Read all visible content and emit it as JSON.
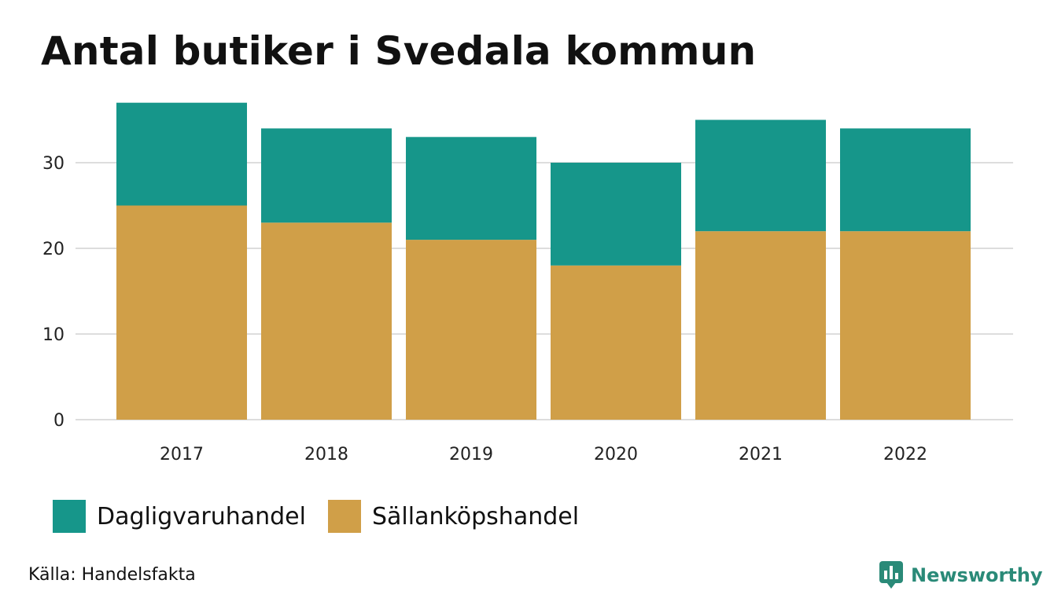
{
  "header": {
    "title": "Antal butiker i Svedala kommun"
  },
  "colors": {
    "dagligvaruhandel": "#16968a",
    "sallankopshandel": "#d09f48",
    "gridline": "#dddddd",
    "brand": "#2a8a78"
  },
  "chart_data": {
    "type": "bar",
    "stacked": true,
    "categories": [
      "2017",
      "2018",
      "2019",
      "2020",
      "2021",
      "2022"
    ],
    "series": [
      {
        "name": "Sällanköpshandel",
        "values": [
          25,
          23,
          21,
          18,
          22,
          22
        ]
      },
      {
        "name": "Dagligvaruhandel",
        "values": [
          12,
          11,
          12,
          12,
          13,
          12
        ]
      }
    ],
    "yticks": [
      "0",
      "10",
      "20",
      "30"
    ],
    "ylim": [
      0,
      37
    ],
    "grid": true,
    "legend_placement": "bottom-left"
  },
  "legend": {
    "items": [
      {
        "label": "Dagligvaruhandel",
        "color": "#16968a"
      },
      {
        "label": "Sällanköpshandel",
        "color": "#d09f48"
      }
    ]
  },
  "footer": {
    "source": "Källa: Handelsfakta",
    "brand_name": "Newsworthy",
    "brand_icon": "newsworthy-logo-icon"
  }
}
